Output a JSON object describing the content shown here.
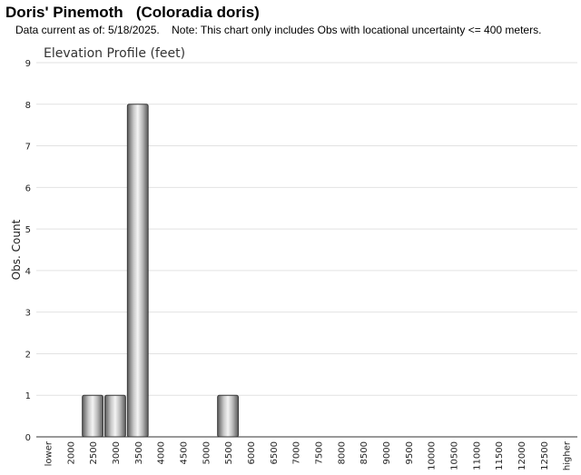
{
  "header": {
    "title": "Doris' Pinemoth   (Coloradia doris)",
    "subtitle": "Data current as of: 5/18/2025.    Note: This chart only includes Obs with locational uncertainty <= 400 meters."
  },
  "chart_data": {
    "type": "bar",
    "title": "Elevation Profile (feet)",
    "xlabel": "",
    "ylabel": "Obs. Count",
    "ylim": [
      0,
      9
    ],
    "yticks": [
      0,
      1,
      2,
      3,
      4,
      5,
      6,
      7,
      8,
      9
    ],
    "grid": true,
    "categories": [
      "lower",
      "2000",
      "2500",
      "3000",
      "3500",
      "4000",
      "4500",
      "5000",
      "5500",
      "6000",
      "6500",
      "7000",
      "7500",
      "8000",
      "8500",
      "9000",
      "9500",
      "10000",
      "10500",
      "11000",
      "11500",
      "12000",
      "12500",
      "higher"
    ],
    "values": [
      0,
      0,
      1,
      1,
      8,
      0,
      0,
      0,
      1,
      0,
      0,
      0,
      0,
      0,
      0,
      0,
      0,
      0,
      0,
      0,
      0,
      0,
      0,
      0
    ],
    "bar_color": "#9a9a9a"
  }
}
